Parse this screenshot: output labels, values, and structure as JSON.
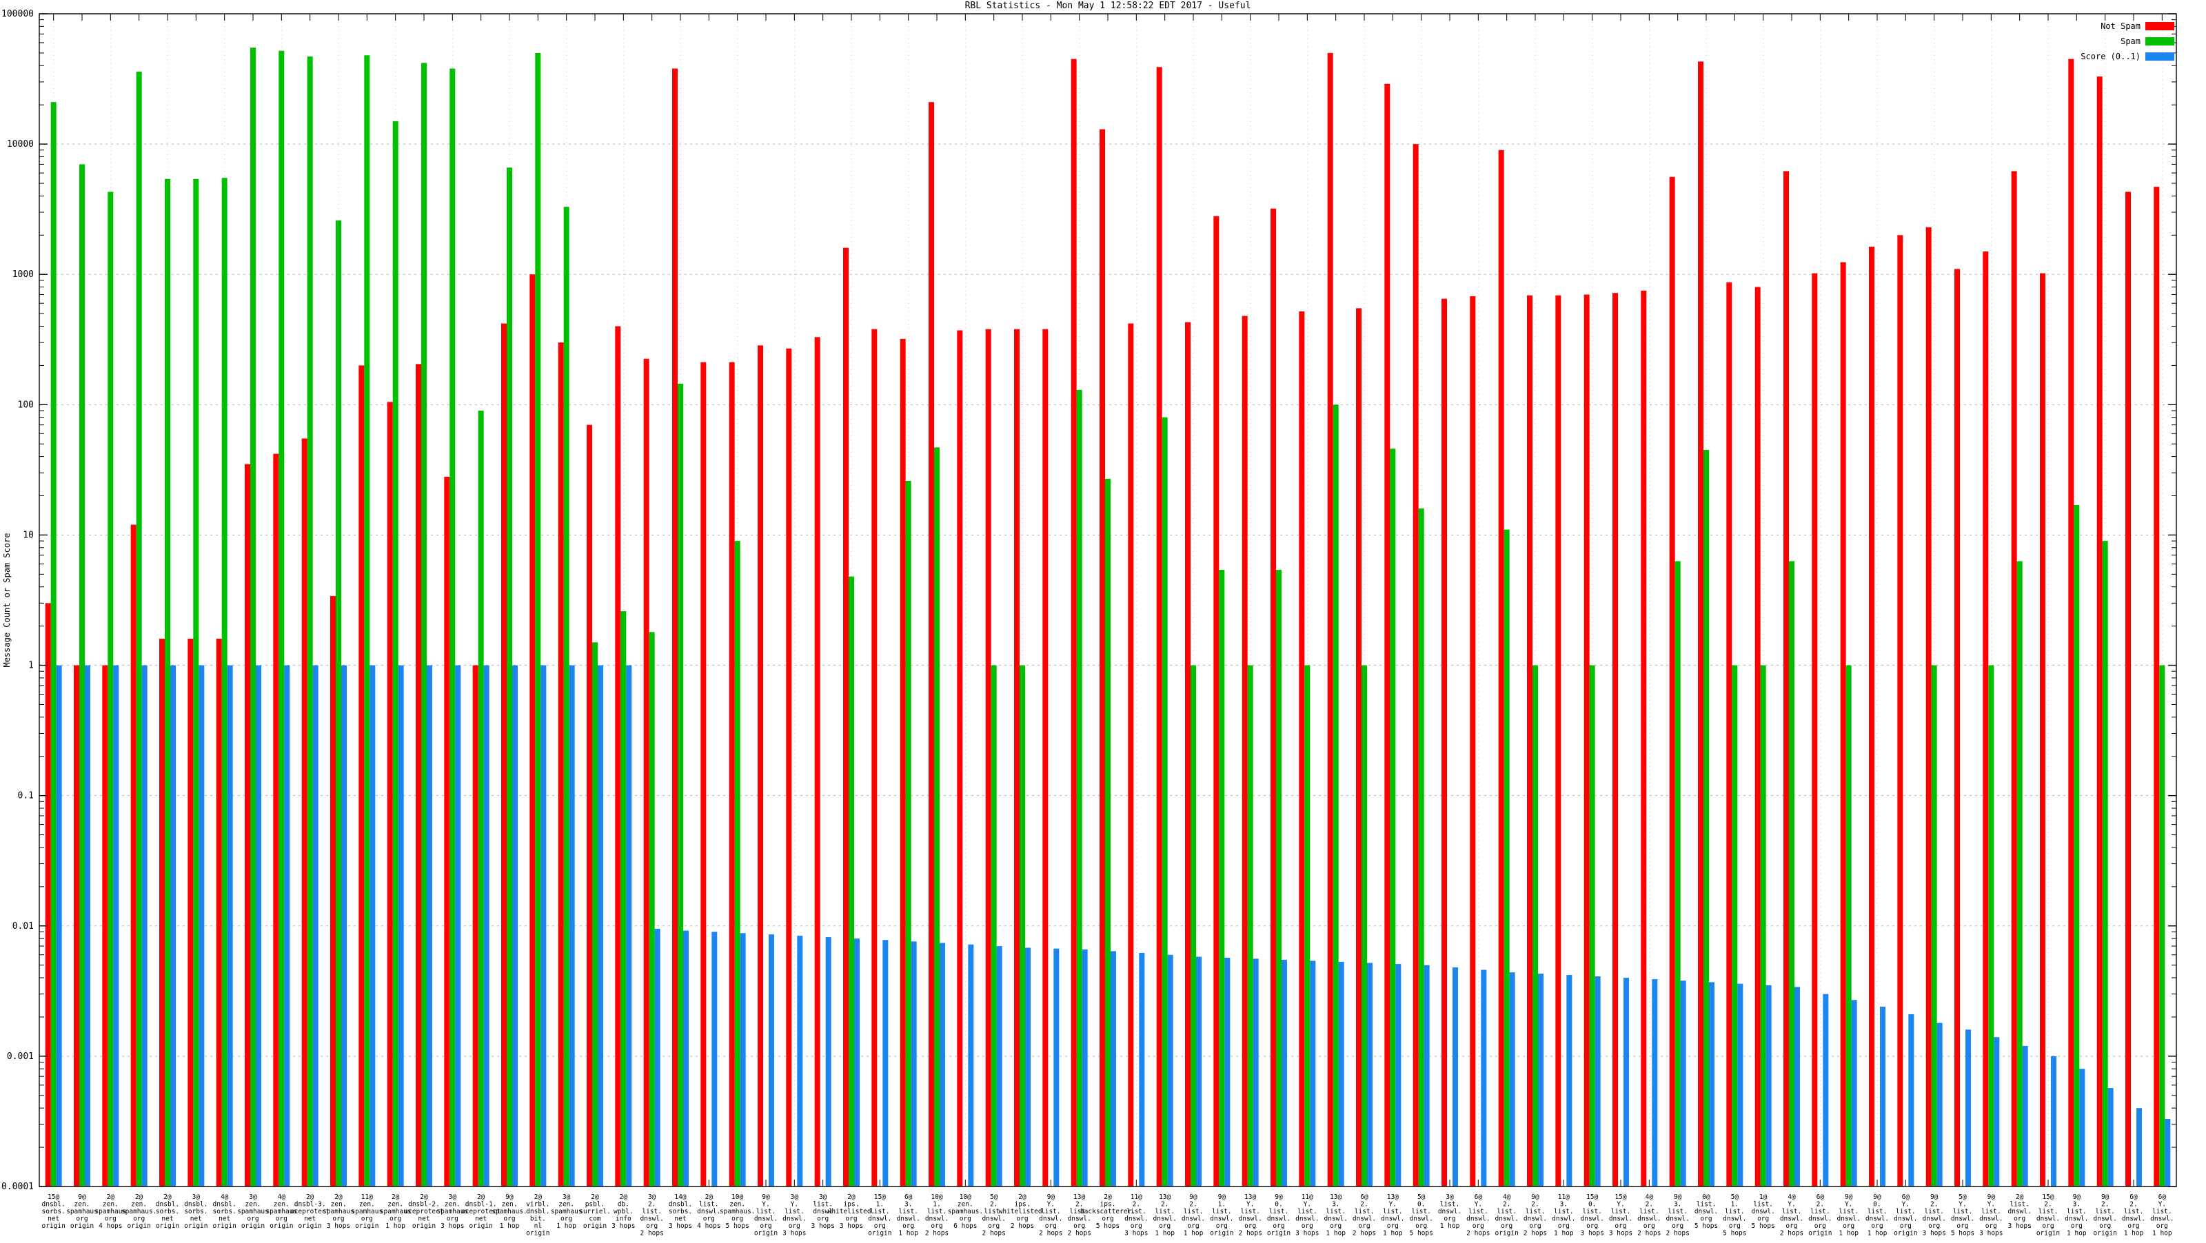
{
  "title": "RBL Statistics - Mon May  1 12:58:22 EDT 2017 - Useful",
  "ylabel": "Message Count or Spam Score",
  "legend": [
    {
      "label": "Not Spam",
      "color": "#ff0000",
      "key": "not_spam"
    },
    {
      "label": "Spam",
      "color": "#00c000",
      "key": "spam"
    },
    {
      "label": "Score (0..1)",
      "color": "#1c86ee",
      "key": "score"
    }
  ],
  "chart_data": {
    "type": "bar",
    "y_scale": "log",
    "ylim": [
      0.0001,
      100000
    ],
    "yticks": [
      "100000",
      "10000",
      "1000",
      "100",
      "10",
      "1",
      "0.1",
      "0.01",
      "0.001",
      "0.0001"
    ],
    "grid": true,
    "legend_position": "top-right",
    "series_names": [
      "Not Spam",
      "Spam",
      "Score (0..1)"
    ],
    "groups": [
      {
        "label_lines": [
          "15@",
          "dnsbl.",
          "sorbs.",
          "net",
          "origin"
        ],
        "not_spam": 3,
        "spam": 21000,
        "score": 1
      },
      {
        "label_lines": [
          "9@",
          "zen.",
          "spamhaus",
          "org",
          "origin"
        ],
        "not_spam": 1,
        "spam": 7000,
        "score": 1
      },
      {
        "label_lines": [
          "2@",
          "zen.",
          "spamhaus",
          "org",
          "4 hops"
        ],
        "not_spam": 1,
        "spam": 4300,
        "score": 1
      },
      {
        "label_lines": [
          "2@",
          "zen.",
          "spamhaus.",
          "org",
          "origin"
        ],
        "not_spam": 12,
        "spam": 36000,
        "score": 1
      },
      {
        "label_lines": [
          "2@",
          "dnsbl.",
          "sorbs.",
          "net",
          "origin"
        ],
        "not_spam": 1.6,
        "spam": 5400,
        "score": 1
      },
      {
        "label_lines": [
          "3@",
          "dnsbl.",
          "sorbs.",
          "net",
          "origin"
        ],
        "not_spam": 1.6,
        "spam": 5400,
        "score": 1
      },
      {
        "label_lines": [
          "4@",
          "dnsbl.",
          "sorbs.",
          "net",
          "origin"
        ],
        "not_spam": 1.6,
        "spam": 5500,
        "score": 1
      },
      {
        "label_lines": [
          "3@",
          "zen.",
          "spamhaus",
          "org",
          "origin"
        ],
        "not_spam": 35,
        "spam": 55000,
        "score": 1
      },
      {
        "label_lines": [
          "4@",
          "zen.",
          "spamhaus",
          "org",
          "origin"
        ],
        "not_spam": 42,
        "spam": 52000,
        "score": 1
      },
      {
        "label_lines": [
          "2@",
          "dnsbl-3.",
          "uceprotect",
          "net",
          "origin"
        ],
        "not_spam": 55,
        "spam": 47000,
        "score": 1
      },
      {
        "label_lines": [
          "2@",
          "zen.",
          "spamhaus",
          "org",
          "3 hops"
        ],
        "not_spam": 3.4,
        "spam": 2600,
        "score": 1
      },
      {
        "label_lines": [
          "11@",
          "zen.",
          "spamhaus",
          "org",
          "origin"
        ],
        "not_spam": 200,
        "spam": 48000,
        "score": 1
      },
      {
        "label_lines": [
          "2@",
          "zen.",
          "spamhaus",
          "org",
          "1 hop"
        ],
        "not_spam": 105,
        "spam": 15000,
        "score": 1
      },
      {
        "label_lines": [
          "2@",
          "dnsbl-2.",
          "uceprotect",
          "net",
          "origin"
        ],
        "not_spam": 205,
        "spam": 42000,
        "score": 1
      },
      {
        "label_lines": [
          "3@",
          "zen.",
          "spamhaus",
          "org",
          "3 hops"
        ],
        "not_spam": 28,
        "spam": 38000,
        "score": 1
      },
      {
        "label_lines": [
          "2@",
          "dnsbl-1.",
          "uceprotect",
          "net",
          "origin"
        ],
        "not_spam": 1,
        "spam": 90,
        "score": 1
      },
      {
        "label_lines": [
          "9@",
          "zen.",
          "spamhaus.",
          "org",
          "1 hop"
        ],
        "not_spam": 420,
        "spam": 6600,
        "score": 1
      },
      {
        "label_lines": [
          "2@",
          "virbl.",
          "dnsbl.",
          "bit.",
          "nl",
          "origin"
        ],
        "not_spam": 1000,
        "spam": 50000,
        "score": 1
      },
      {
        "label_lines": [
          "3@",
          "zen.",
          "spamhaus",
          "org",
          "1 hop"
        ],
        "not_spam": 300,
        "spam": 3300,
        "score": 1
      },
      {
        "label_lines": [
          "2@",
          "psbl.",
          "surriel.",
          "com",
          "origin"
        ],
        "not_spam": 70,
        "spam": 1.5,
        "score": 1
      },
      {
        "label_lines": [
          "2@",
          "db.",
          "wpbl.",
          "info",
          "3 hops"
        ],
        "not_spam": 400,
        "spam": 2.6,
        "score": 1
      },
      {
        "label_lines": [
          "3@",
          "2.",
          "list.",
          "dnswl.",
          "org",
          "2 hops"
        ],
        "not_spam": 225,
        "spam": 1.8,
        "score": 0.0095
      },
      {
        "label_lines": [
          "14@",
          "dnsbl.",
          "sorbs.",
          "net",
          "3 hops"
        ],
        "not_spam": 38000,
        "spam": 145,
        "score": 0.0092
      },
      {
        "label_lines": [
          "2@",
          "list.",
          "dnswl.",
          "org",
          "4 hops"
        ],
        "not_spam": 212,
        "spam": null,
        "score": 0.009
      },
      {
        "label_lines": [
          "10@",
          "zen.",
          "spamhaus.",
          "org",
          "5 hops"
        ],
        "not_spam": 212,
        "spam": 9,
        "score": 0.0088
      },
      {
        "label_lines": [
          "9@",
          "Y.",
          "list.",
          "dnswl.",
          "org",
          "origin"
        ],
        "not_spam": 285,
        "spam": null,
        "score": 0.0086
      },
      {
        "label_lines": [
          "3@",
          "Y.",
          "list.",
          "dnswl.",
          "org",
          "3 hops"
        ],
        "not_spam": 270,
        "spam": null,
        "score": 0.0084
      },
      {
        "label_lines": [
          "3@",
          "list.",
          "dnswl",
          "org",
          "3 hops"
        ],
        "not_spam": 330,
        "spam": null,
        "score": 0.0082
      },
      {
        "label_lines": [
          "2@",
          "ips.",
          "whitelisted.",
          "org",
          "3 hops"
        ],
        "not_spam": 1600,
        "spam": 4.8,
        "score": 0.008
      },
      {
        "label_lines": [
          "15@",
          "1.",
          "list.",
          "dnswl.",
          "org",
          "origin"
        ],
        "not_spam": 380,
        "spam": null,
        "score": 0.0078
      },
      {
        "label_lines": [
          "6@",
          "3.",
          "list.",
          "dnswl.",
          "org",
          "1 hop"
        ],
        "not_spam": 320,
        "spam": 26,
        "score": 0.0076
      },
      {
        "label_lines": [
          "10@",
          "1.",
          "list.",
          "dnswl.",
          "org",
          "2 hops"
        ],
        "not_spam": 21000,
        "spam": 47,
        "score": 0.0074
      },
      {
        "label_lines": [
          "10@",
          "zen.",
          "spamhaus.",
          "org",
          "6 hops"
        ],
        "not_spam": 372,
        "spam": null,
        "score": 0.0072
      },
      {
        "label_lines": [
          "5@",
          "2.",
          "list.",
          "dnswl.",
          "org",
          "2 hops"
        ],
        "not_spam": 380,
        "spam": 1,
        "score": 0.007
      },
      {
        "label_lines": [
          "2@",
          "ips.",
          "whitelisted.",
          "org",
          "2 hops"
        ],
        "not_spam": 380,
        "spam": 1,
        "score": 0.0068
      },
      {
        "label_lines": [
          "9@",
          "Y.",
          "list.",
          "dnswl.",
          "org",
          "2 hops"
        ],
        "not_spam": 380,
        "spam": null,
        "score": 0.0067
      },
      {
        "label_lines": [
          "13@",
          "2.",
          "list.",
          "dnswl.",
          "org",
          "2 hops"
        ],
        "not_spam": 45000,
        "spam": 130,
        "score": 0.0066
      },
      {
        "label_lines": [
          "2@",
          "ips.",
          "backscatterer.",
          "org",
          "5 hops"
        ],
        "not_spam": 13000,
        "spam": 27,
        "score": 0.0064
      },
      {
        "label_lines": [
          "11@",
          "2.",
          "list.",
          "dnswl.",
          "org",
          "3 hops"
        ],
        "not_spam": 420,
        "spam": null,
        "score": 0.0062
      },
      {
        "label_lines": [
          "13@",
          "2.",
          "list.",
          "dnswl.",
          "org",
          "1 hop"
        ],
        "not_spam": 39000,
        "spam": 80,
        "score": 0.006
      },
      {
        "label_lines": [
          "9@",
          "2.",
          "list.",
          "dnswl.",
          "org",
          "1 hop"
        ],
        "not_spam": 430,
        "spam": 1,
        "score": 0.0058
      },
      {
        "label_lines": [
          "9@",
          "1.",
          "list.",
          "dnswl.",
          "org",
          "origin"
        ],
        "not_spam": 2800,
        "spam": 5.4,
        "score": 0.0057
      },
      {
        "label_lines": [
          "13@",
          "Y.",
          "list.",
          "dnswl.",
          "org",
          "2 hops"
        ],
        "not_spam": 480,
        "spam": 1,
        "score": 0.0056
      },
      {
        "label_lines": [
          "9@",
          "0.",
          "list.",
          "dnswl.",
          "org",
          "origin"
        ],
        "not_spam": 3200,
        "spam": 5.4,
        "score": 0.0055
      },
      {
        "label_lines": [
          "11@",
          "Y.",
          "list.",
          "dnswl.",
          "org",
          "3 hops"
        ],
        "not_spam": 520,
        "spam": 1,
        "score": 0.0054
      },
      {
        "label_lines": [
          "13@",
          "3.",
          "list.",
          "dnswl.",
          "org",
          "1 hop"
        ],
        "not_spam": 50000,
        "spam": 100,
        "score": 0.0053
      },
      {
        "label_lines": [
          "6@",
          "2.",
          "list.",
          "dnswl.",
          "org",
          "2 hops"
        ],
        "not_spam": 550,
        "spam": 1,
        "score": 0.0052
      },
      {
        "label_lines": [
          "13@",
          "Y.",
          "list.",
          "dnswl.",
          "org",
          "1 hop"
        ],
        "not_spam": 29000,
        "spam": 46,
        "score": 0.0051
      },
      {
        "label_lines": [
          "5@",
          "0.",
          "list.",
          "dnswl.",
          "org",
          "5 hops"
        ],
        "not_spam": 10000,
        "spam": 16,
        "score": 0.005
      },
      {
        "label_lines": [
          "3@",
          "list.",
          "dnswl.",
          "org",
          "1 hop"
        ],
        "not_spam": 650,
        "spam": null,
        "score": 0.0048
      },
      {
        "label_lines": [
          "6@",
          "Y.",
          "list.",
          "dnswl.",
          "org",
          "2 hops"
        ],
        "not_spam": 680,
        "spam": null,
        "score": 0.0046
      },
      {
        "label_lines": [
          "4@",
          "2.",
          "list.",
          "dnswl.",
          "org",
          "origin"
        ],
        "not_spam": 9000,
        "spam": 11,
        "score": 0.0044
      },
      {
        "label_lines": [
          "9@",
          "2.",
          "list.",
          "dnswl.",
          "org",
          "2 hops"
        ],
        "not_spam": 690,
        "spam": 1,
        "score": 0.0043
      },
      {
        "label_lines": [
          "11@",
          "3.",
          "list.",
          "dnswl.",
          "org",
          "1 hop"
        ],
        "not_spam": 690,
        "spam": null,
        "score": 0.0042
      },
      {
        "label_lines": [
          "15@",
          "0.",
          "list.",
          "dnswl.",
          "org",
          "3 hops"
        ],
        "not_spam": 700,
        "spam": 1,
        "score": 0.0041
      },
      {
        "label_lines": [
          "15@",
          "Y.",
          "list.",
          "dnswl.",
          "org",
          "3 hops"
        ],
        "not_spam": 720,
        "spam": null,
        "score": 0.004
      },
      {
        "label_lines": [
          "4@",
          "2.",
          "list.",
          "dnswl.",
          "org",
          "2 hops"
        ],
        "not_spam": 750,
        "spam": null,
        "score": 0.0039
      },
      {
        "label_lines": [
          "9@",
          "3.",
          "list.",
          "dnswl.",
          "org",
          "2 hops"
        ],
        "not_spam": 5600,
        "spam": 6.3,
        "score": 0.0038
      },
      {
        "label_lines": [
          "0@",
          "list.",
          "dnswl.",
          "org",
          "5 hops"
        ],
        "not_spam": 43000,
        "spam": 45,
        "score": 0.0037
      },
      {
        "label_lines": [
          "5@",
          "1.",
          "list.",
          "dnswl.",
          "org",
          "5 hops"
        ],
        "not_spam": 870,
        "spam": 1,
        "score": 0.0036
      },
      {
        "label_lines": [
          "1@",
          "list.",
          "dnswl.",
          "org",
          "5 hops"
        ],
        "not_spam": 800,
        "spam": 1,
        "score": 0.0035
      },
      {
        "label_lines": [
          "4@",
          "Y.",
          "list.",
          "dnswl.",
          "org",
          "2 hops"
        ],
        "not_spam": 6200,
        "spam": 6.3,
        "score": 0.0034
      },
      {
        "label_lines": [
          "6@",
          "2.",
          "list.",
          "dnswl.",
          "org",
          "origin"
        ],
        "not_spam": 1020,
        "spam": null,
        "score": 0.003
      },
      {
        "label_lines": [
          "9@",
          "Y.",
          "list.",
          "dnswl.",
          "org",
          "1 hop"
        ],
        "not_spam": 1240,
        "spam": 1,
        "score": 0.0027
      },
      {
        "label_lines": [
          "9@",
          "0.",
          "list.",
          "dnswl.",
          "org",
          "1 hop"
        ],
        "not_spam": 1630,
        "spam": null,
        "score": 0.0024
      },
      {
        "label_lines": [
          "6@",
          "Y.",
          "list.",
          "dnswl.",
          "org",
          "origin"
        ],
        "not_spam": 2000,
        "spam": null,
        "score": 0.0021
      },
      {
        "label_lines": [
          "9@",
          "2.",
          "list.",
          "dnswl.",
          "org",
          "3 hops"
        ],
        "not_spam": 2300,
        "spam": 1,
        "score": 0.0018
      },
      {
        "label_lines": [
          "5@",
          "Y.",
          "list.",
          "dnswl.",
          "org",
          "5 hops"
        ],
        "not_spam": 1100,
        "spam": null,
        "score": 0.0016
      },
      {
        "label_lines": [
          "9@",
          "Y.",
          "list.",
          "dnswl.",
          "org",
          "3 hops"
        ],
        "not_spam": 1500,
        "spam": 1,
        "score": 0.0014
      },
      {
        "label_lines": [
          "2@",
          "list.",
          "dnswl.",
          "org",
          "3 hops"
        ],
        "not_spam": 6200,
        "spam": 6.3,
        "score": 0.0012
      },
      {
        "label_lines": [
          "15@",
          "2.",
          "list.",
          "dnswl.",
          "org",
          "origin"
        ],
        "not_spam": 1020,
        "spam": null,
        "score": 0.001
      },
      {
        "label_lines": [
          "9@",
          "3.",
          "list.",
          "dnswl.",
          "org",
          "1 hop"
        ],
        "not_spam": 45000,
        "spam": 17,
        "score": 0.0008
      },
      {
        "label_lines": [
          "9@",
          "2.",
          "list.",
          "dnswl.",
          "org",
          "origin"
        ],
        "not_spam": 33000,
        "spam": 9,
        "score": 0.00057
      },
      {
        "label_lines": [
          "6@",
          "2.",
          "list.",
          "dnswl.",
          "org",
          "1 hop"
        ],
        "not_spam": 4300,
        "spam": null,
        "score": 0.0004
      },
      {
        "label_lines": [
          "6@",
          "Y.",
          "list.",
          "dnswl.",
          "org",
          "1 hop"
        ],
        "not_spam": 4700,
        "spam": 1,
        "score": 0.00033
      }
    ]
  }
}
